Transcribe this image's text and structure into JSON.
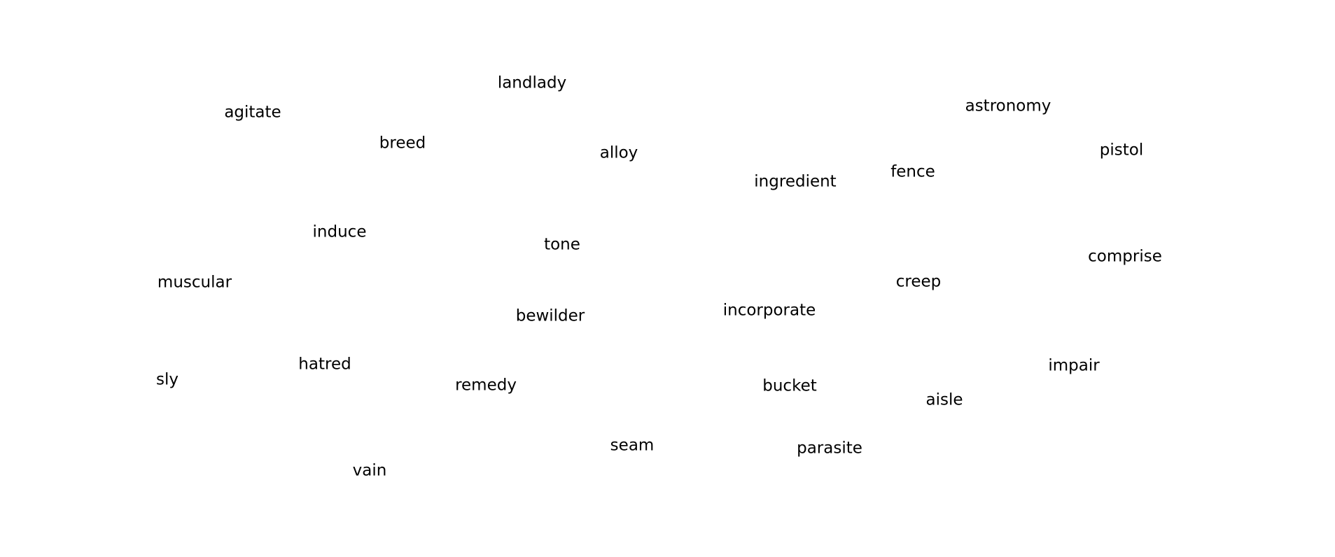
{
  "words": [
    "landlady",
    "agitate",
    "astronomy",
    "breed",
    "alloy",
    "pistol",
    "fence",
    "ingredient",
    "induce",
    "tone",
    "comprise",
    "muscular",
    "creep",
    "incorporate",
    "bewilder",
    "hatred",
    "impair",
    "sly",
    "remedy",
    "bucket",
    "aisle",
    "seam",
    "parasite",
    "vain"
  ]
}
